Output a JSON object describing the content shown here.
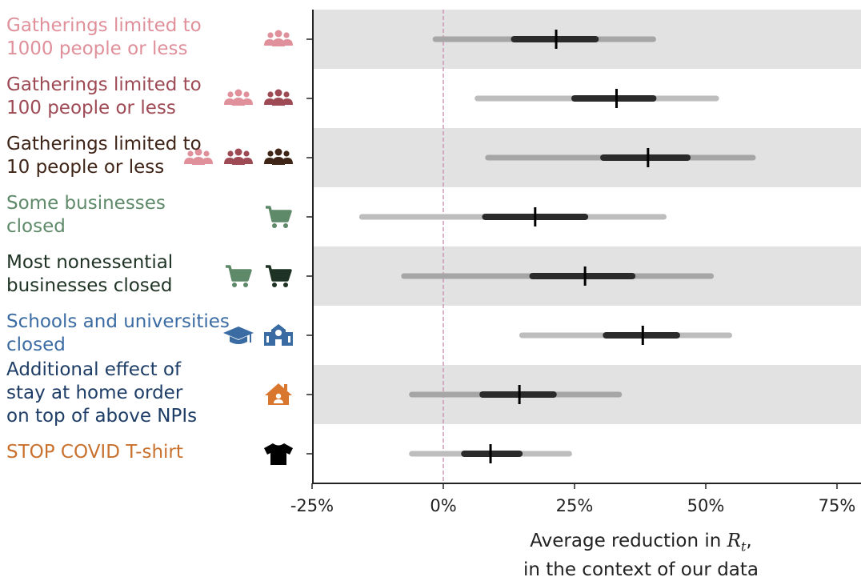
{
  "chart_data": {
    "type": "forest",
    "xlabel_line1": "Average reduction in ",
    "xlabel_var": "R",
    "xlabel_sub": "t",
    "xlabel_line1_end": ",",
    "xlabel_line2": "in the context of our data",
    "xlim": [
      -25,
      80
    ],
    "ticks": [
      -25,
      0,
      25,
      50,
      75
    ],
    "tick_labels": [
      "-25%",
      "0%",
      "25%",
      "50%",
      "75%"
    ],
    "reference_line": 0,
    "rows": [
      {
        "label": "Gatherings limited to\n1000 people or less",
        "color": "#e0909a",
        "icons": [
          "group-icon"
        ],
        "icon_colors": [
          "#e0909a"
        ],
        "median": 21.5,
        "inner": [
          13.5,
          29
        ],
        "outer": [
          -1.5,
          40
        ]
      },
      {
        "label": "Gatherings limited to\n100 people or less",
        "color": "#9e4a55",
        "icons": [
          "group-icon",
          "group-icon"
        ],
        "icon_colors": [
          "#e0909a",
          "#9e4a55"
        ],
        "median": 33,
        "inner": [
          25,
          40
        ],
        "outer": [
          6.5,
          52
        ]
      },
      {
        "label": "Gatherings limited to\n10 people or less",
        "color": "#3f2418",
        "icons": [
          "group-icon",
          "group-icon",
          "group-icon"
        ],
        "icon_colors": [
          "#e0909a",
          "#9e4a55",
          "#3f2418"
        ],
        "median": 39,
        "inner": [
          30.5,
          46.5
        ],
        "outer": [
          8.5,
          59
        ]
      },
      {
        "label": "Some businesses\nclosed",
        "color": "#5f8a6a",
        "icons": [
          "cart-icon"
        ],
        "icon_colors": [
          "#5f8a6a"
        ],
        "median": 17.5,
        "inner": [
          8,
          27
        ],
        "outer": [
          -15.5,
          42
        ]
      },
      {
        "label": "Most nonessential\nbusinesses closed",
        "color": "#1f3324",
        "icons": [
          "cart-icon",
          "cart-icon"
        ],
        "icon_colors": [
          "#5f8a6a",
          "#1f3324"
        ],
        "median": 27,
        "inner": [
          17,
          36
        ],
        "outer": [
          -7.5,
          51
        ]
      },
      {
        "label": "Schools and universities\nclosed",
        "color": "#3b6ba3",
        "icons": [
          "graduation-cap-icon",
          "school-icon"
        ],
        "icon_colors": [
          "#3b6ba3",
          "#3b6ba3"
        ],
        "median": 38,
        "inner": [
          31,
          44.5
        ],
        "outer": [
          15,
          54.5
        ]
      },
      {
        "label": "Additional effect of\nstay at home order\non top of above NPIs",
        "color": "#1e3d66",
        "icons": [
          "home-icon"
        ],
        "icon_colors": [
          "#d9772e"
        ],
        "median": 14.5,
        "inner": [
          7.5,
          21
        ],
        "outer": [
          -6,
          33.5
        ]
      },
      {
        "label": "STOP COVID T-shirt",
        "color": "#c9712e",
        "icons": [
          "tshirt-icon"
        ],
        "icon_colors": [
          "#000000"
        ],
        "median": 9,
        "inner": [
          4,
          14.5
        ],
        "outer": [
          -6,
          24
        ]
      }
    ]
  }
}
